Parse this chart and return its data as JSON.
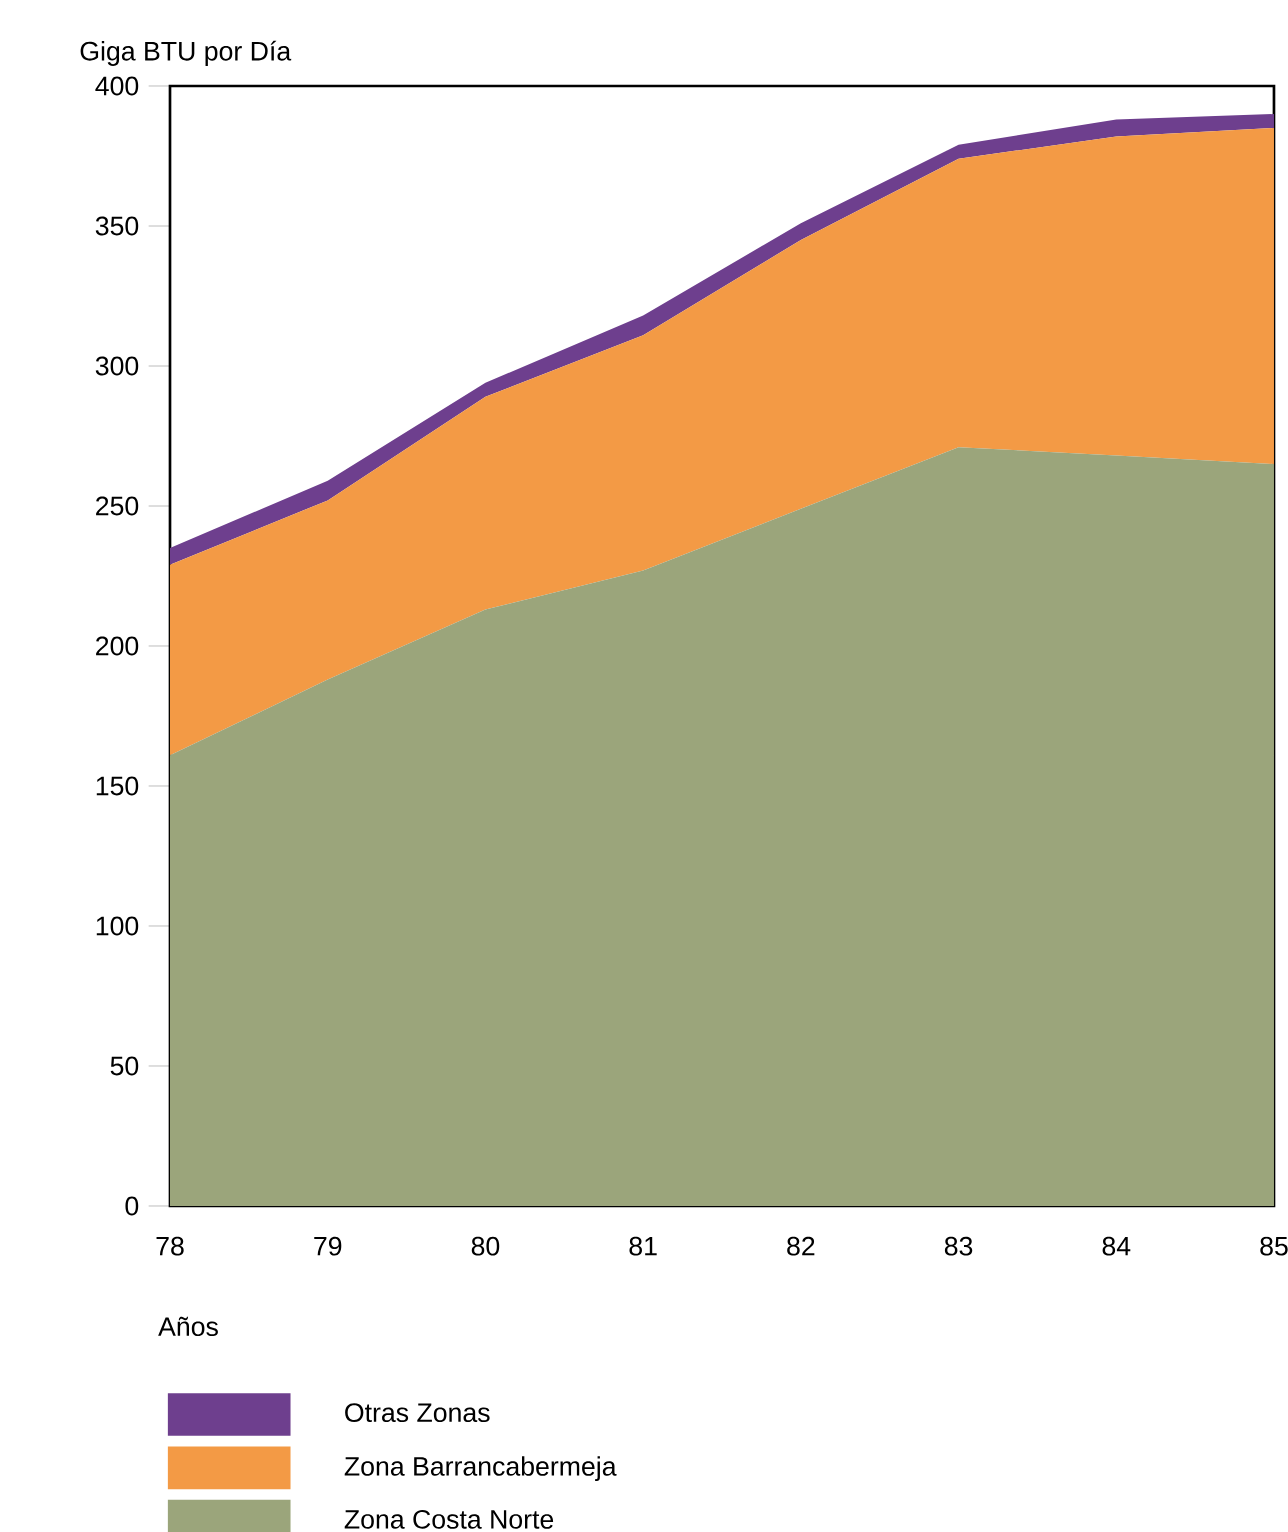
{
  "chart_data": {
    "type": "area",
    "stacked": true,
    "ylabel": "Giga BTU por Día",
    "xlabel": "Años",
    "x": [
      78,
      79,
      80,
      81,
      82,
      83,
      84,
      85
    ],
    "xlim": [
      78,
      85
    ],
    "xticks": [
      78,
      79,
      80,
      81,
      82,
      83,
      84,
      85
    ],
    "ylim": [
      0,
      400
    ],
    "yticks": [
      0,
      50,
      100,
      150,
      200,
      250,
      300,
      350,
      400
    ],
    "grid": false,
    "legend": "bottom",
    "series": [
      {
        "name": "Zona Costa Norte",
        "color": "#9ba57b",
        "values": [
          161,
          188,
          213,
          227,
          249,
          271,
          268,
          265
        ]
      },
      {
        "name": "Zona Barrancabermeja",
        "color": "#f39a45",
        "values": [
          68,
          64,
          76,
          84,
          96,
          103,
          114,
          120
        ]
      },
      {
        "name": "Otras Zonas",
        "color": "#6e3f8e",
        "values": [
          6,
          7,
          5,
          7,
          6,
          5,
          6,
          5
        ]
      }
    ]
  }
}
